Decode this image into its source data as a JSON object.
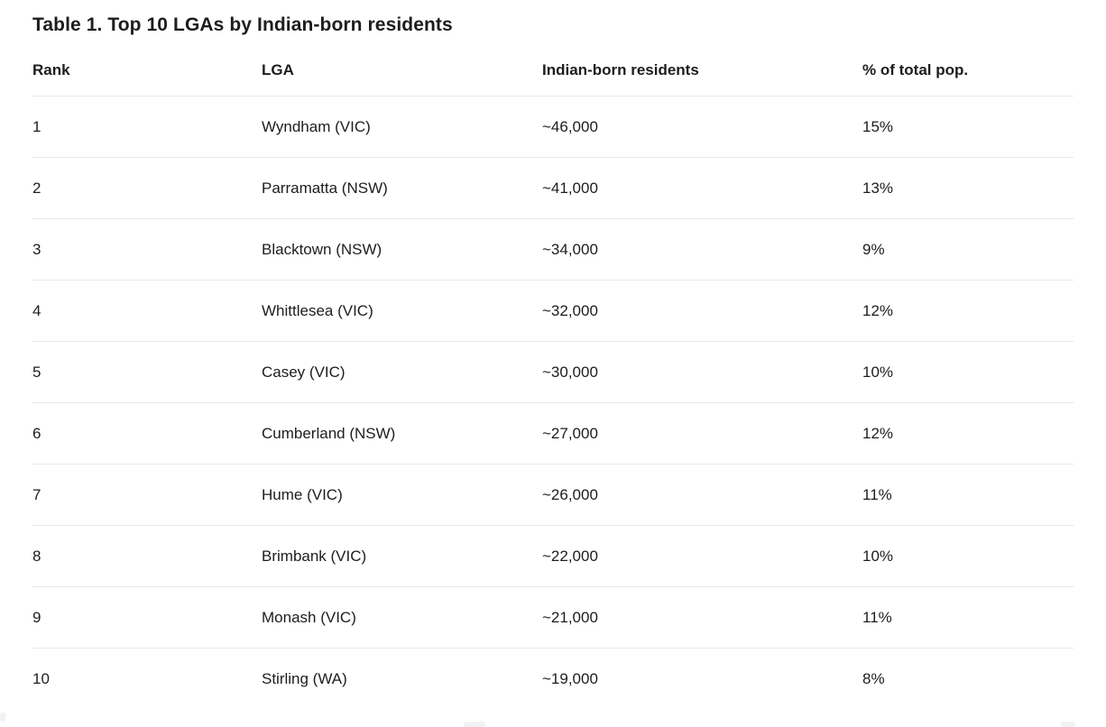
{
  "title": "Table 1. Top 10 LGAs by Indian-born residents",
  "table": {
    "columns": [
      "Rank",
      "LGA",
      "Indian-born residents",
      "% of total pop."
    ],
    "rows": [
      [
        "1",
        "Wyndham (VIC)",
        "~46,000",
        "15%"
      ],
      [
        "2",
        "Parramatta (NSW)",
        "~41,000",
        "13%"
      ],
      [
        "3",
        "Blacktown (NSW)",
        "~34,000",
        "9%"
      ],
      [
        "4",
        "Whittlesea (VIC)",
        "~32,000",
        "12%"
      ],
      [
        "5",
        "Casey (VIC)",
        "~30,000",
        "10%"
      ],
      [
        "6",
        "Cumberland (NSW)",
        "~27,000",
        "12%"
      ],
      [
        "7",
        "Hume (VIC)",
        "~26,000",
        "11%"
      ],
      [
        "8",
        "Brimbank (VIC)",
        "~22,000",
        "10%"
      ],
      [
        "9",
        "Monash (VIC)",
        "~21,000",
        "11%"
      ],
      [
        "10",
        "Stirling (WA)",
        "~19,000",
        "8%"
      ]
    ]
  },
  "colors": {
    "text": "#1d1d1f",
    "divider": "#e8e8e8",
    "background": "#ffffff"
  },
  "chart_data": {
    "type": "table",
    "title": "Table 1. Top 10 LGAs by Indian-born residents",
    "columns": [
      "Rank",
      "LGA",
      "Indian-born residents",
      "% of total pop."
    ],
    "rows": [
      [
        "1",
        "Wyndham (VIC)",
        "~46,000",
        "15%"
      ],
      [
        "2",
        "Parramatta (NSW)",
        "~41,000",
        "13%"
      ],
      [
        "3",
        "Blacktown (NSW)",
        "~34,000",
        "9%"
      ],
      [
        "4",
        "Whittlesea (VIC)",
        "~32,000",
        "12%"
      ],
      [
        "5",
        "Casey (VIC)",
        "~30,000",
        "10%"
      ],
      [
        "6",
        "Cumberland (NSW)",
        "~27,000",
        "12%"
      ],
      [
        "7",
        "Hume (VIC)",
        "~26,000",
        "11%"
      ],
      [
        "8",
        "Brimbank (VIC)",
        "~22,000",
        "10%"
      ],
      [
        "9",
        "Monash (VIC)",
        "~21,000",
        "11%"
      ],
      [
        "10",
        "Stirling (WA)",
        "~19,000",
        "8%"
      ]
    ],
    "series": [
      {
        "name": "Indian-born residents (approx.)",
        "categories": [
          "Wyndham (VIC)",
          "Parramatta (NSW)",
          "Blacktown (NSW)",
          "Whittlesea (VIC)",
          "Casey (VIC)",
          "Cumberland (NSW)",
          "Hume (VIC)",
          "Brimbank (VIC)",
          "Monash (VIC)",
          "Stirling (WA)"
        ],
        "values": [
          46000,
          41000,
          34000,
          32000,
          30000,
          27000,
          26000,
          22000,
          21000,
          19000
        ]
      },
      {
        "name": "% of total pop.",
        "categories": [
          "Wyndham (VIC)",
          "Parramatta (NSW)",
          "Blacktown (NSW)",
          "Whittlesea (VIC)",
          "Casey (VIC)",
          "Cumberland (NSW)",
          "Hume (VIC)",
          "Brimbank (VIC)",
          "Monash (VIC)",
          "Stirling (WA)"
        ],
        "values": [
          15,
          13,
          9,
          12,
          10,
          12,
          11,
          10,
          11,
          8
        ]
      }
    ]
  }
}
